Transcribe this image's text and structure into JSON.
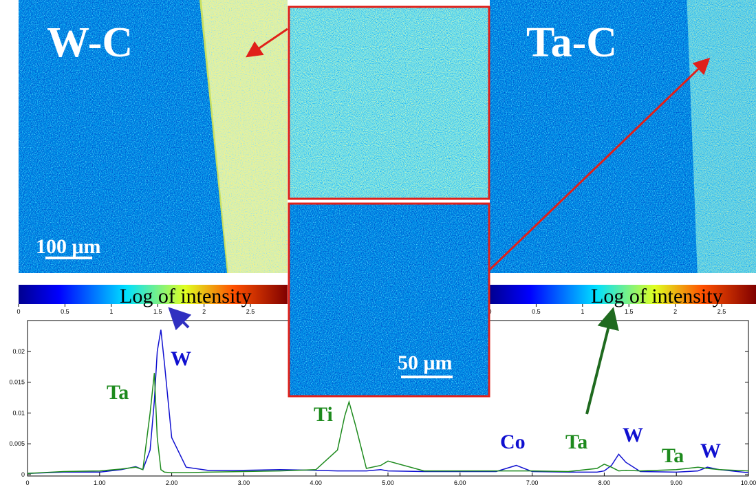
{
  "maps": {
    "left": {
      "label": "W-C",
      "scale_bar": "100 μm"
    },
    "right": {
      "label": "Ta-C"
    },
    "inset_scale_bar": "50 μm"
  },
  "colorbars": [
    {
      "label": "Log of intensity",
      "lim": [
        0,
        2.9
      ],
      "ticks": [
        0,
        0.5,
        1,
        1.5,
        2,
        2.5
      ]
    },
    {
      "label": "Log of intensity",
      "lim": [
        0,
        2.9
      ],
      "ticks": [
        0,
        0.5,
        1,
        1.5,
        2,
        2.5
      ]
    }
  ],
  "chart_data": {
    "type": "line",
    "x": [
      0,
      0.5,
      1.0,
      1.3,
      1.5,
      1.6,
      1.7,
      1.76,
      1.8,
      1.85,
      1.9,
      2.0,
      2.2,
      2.5,
      3.0,
      3.5,
      4.0,
      4.3,
      4.4,
      4.46,
      4.55,
      4.7,
      4.9,
      5.0,
      5.5,
      6.0,
      6.5,
      6.78,
      7.0,
      7.5,
      7.9,
      8.0,
      8.1,
      8.2,
      8.3,
      8.5,
      9.0,
      9.3,
      9.43,
      9.6,
      10.0
    ],
    "series": [
      {
        "color": "#1010d0",
        "values": [
          0.0002,
          0.0004,
          0.0004,
          0.0008,
          0.0013,
          0.0008,
          0.004,
          0.012,
          0.02,
          0.0235,
          0.018,
          0.006,
          0.0012,
          0.0007,
          0.0007,
          0.0008,
          0.0007,
          0.0006,
          0.0006,
          0.0006,
          0.0006,
          0.0006,
          0.0008,
          0.0006,
          0.0005,
          0.0005,
          0.0005,
          0.0015,
          0.0005,
          0.0004,
          0.0004,
          0.0006,
          0.0015,
          0.0033,
          0.002,
          0.0005,
          0.0004,
          0.0006,
          0.0012,
          0.0008,
          0.0003
        ]
      },
      {
        "color": "#1d8a1d",
        "values": [
          0.0002,
          0.0005,
          0.0006,
          0.0009,
          0.0012,
          0.0008,
          0.01,
          0.0165,
          0.006,
          0.0008,
          0.0004,
          0.0003,
          0.0003,
          0.0004,
          0.0005,
          0.0006,
          0.0008,
          0.004,
          0.0095,
          0.0118,
          0.008,
          0.001,
          0.0015,
          0.0022,
          0.0006,
          0.0006,
          0.0006,
          0.0006,
          0.0006,
          0.0005,
          0.001,
          0.0017,
          0.0012,
          0.0006,
          0.0007,
          0.0006,
          0.0008,
          0.0012,
          0.001,
          0.0008,
          0.0006
        ]
      }
    ],
    "xlim": [
      0,
      10
    ],
    "xticks": [
      0,
      {
        "value": 1,
        "label": "1.00"
      },
      {
        "value": 2,
        "label": "2.00"
      },
      {
        "value": 3,
        "label": "3.00"
      },
      {
        "value": 4,
        "label": "4.00"
      },
      {
        "value": 5,
        "label": "5.00"
      },
      {
        "value": 6,
        "label": "6.00"
      },
      {
        "value": 7,
        "label": "7.00"
      },
      {
        "value": 8,
        "label": "8.00"
      },
      {
        "value": 9,
        "label": "9.00"
      },
      {
        "value": 10,
        "label": "10.00"
      }
    ],
    "ylim": [
      0,
      0.025
    ],
    "yticks": [
      0,
      0.005,
      0.01,
      0.015,
      0.02
    ],
    "annotations": [
      "W",
      "Ta",
      "Ti",
      "Co",
      "Ta",
      "W",
      "Ta",
      "W"
    ]
  }
}
